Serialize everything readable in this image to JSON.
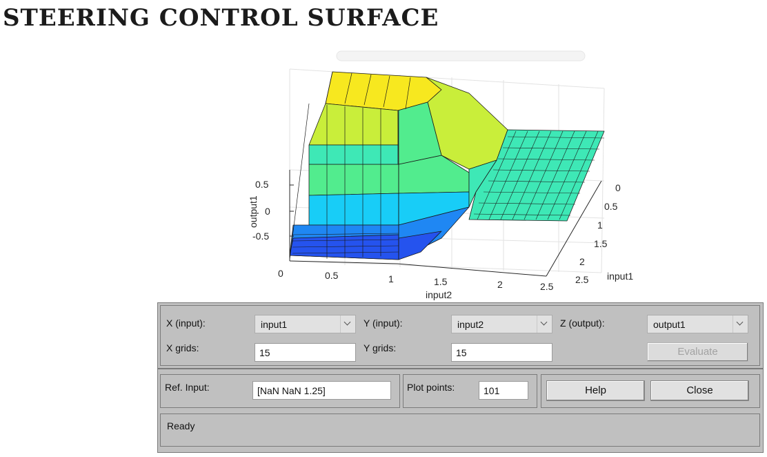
{
  "page_title": "STEERING CONTROL SURFACE",
  "plot": {
    "zlabel": "output1",
    "xlabel": "input2",
    "ylabel": "input1",
    "z_ticks": [
      "0.5",
      "0",
      "-0.5"
    ],
    "x_ticks": [
      "0",
      "0.5",
      "1",
      "1.5",
      "2",
      "2.5"
    ],
    "y_ticks": [
      "0",
      "0.5",
      "1",
      "1.5",
      "2",
      "2.5"
    ],
    "colors": {
      "yellow": "#f7e81f",
      "yellowgreen": "#c9ee3a",
      "green": "#52ec8e",
      "teal": "#3ee8b6",
      "cyan": "#18cdf7",
      "blue": "#1f87f3",
      "darkblue": "#2553ee"
    }
  },
  "controls": {
    "x_input_label": "X (input):",
    "x_input_value": "input1",
    "y_input_label": "Y (input):",
    "y_input_value": "input2",
    "z_output_label": "Z (output):",
    "z_output_value": "output1",
    "x_grids_label": "X grids:",
    "x_grids_value": "15",
    "y_grids_label": "Y grids:",
    "y_grids_value": "15",
    "evaluate_label": "Evaluate",
    "ref_input_label": "Ref. Input:",
    "ref_input_value": "[NaN NaN 1.25]",
    "plot_points_label": "Plot points:",
    "plot_points_value": "101",
    "help_label": "Help",
    "close_label": "Close",
    "status": "Ready"
  }
}
